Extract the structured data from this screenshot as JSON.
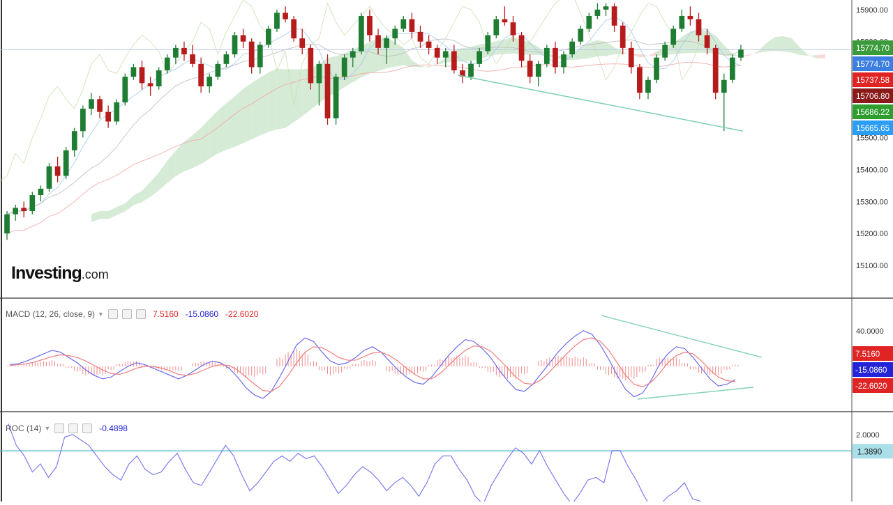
{
  "logo": {
    "main": "Investing",
    "suffix": ".com"
  },
  "panels": {
    "macd": {
      "title": "MACD (12, 26, close, 9)",
      "v1": "7.5160",
      "v2": "-15.0860",
      "v3": "-22.6020"
    },
    "roc": {
      "title": "ROC (14)",
      "v1": "-0.4898"
    }
  },
  "colors": {
    "up": "#1e7d32",
    "down": "#b71c1c",
    "macd_line": "#6a6af0",
    "signal_line": "#f07c7c",
    "hist": "#f08a8a",
    "cloud_up": "#cfe8cf",
    "cloud_down": "#f6d2d2",
    "trend": "#7fcfb8",
    "roc_line": "#7b7bf0",
    "roc_level": "#4fb7c9"
  },
  "chart_data": [
    {
      "type": "candlestick",
      "title": "",
      "ylim": [
        15000,
        15930
      ],
      "y_ticks": [
        "15900.00",
        "15800.00",
        "15500.00",
        "15400.00",
        "15300.00",
        "15200.00",
        "15100.00"
      ],
      "price_tags": [
        {
          "value": 15774.7,
          "label": "15774.70",
          "color": "#3a9b3a"
        },
        {
          "value": 15774.7,
          "label": "15774.70",
          "color": "#3d7fe0"
        },
        {
          "value": 15737.58,
          "label": "15737.58",
          "color": "#e02424"
        },
        {
          "value": 15706.8,
          "label": "15706.80",
          "color": "#8b1a1a"
        },
        {
          "value": 15686.22,
          "label": "15686.22",
          "color": "#2e9e2e"
        },
        {
          "value": 15665.65,
          "label": "15665.65",
          "color": "#2a9df4"
        }
      ],
      "candles": [
        [
          15200,
          15270,
          15180,
          15260
        ],
        [
          15260,
          15290,
          15240,
          15280
        ],
        [
          15280,
          15300,
          15250,
          15270
        ],
        [
          15270,
          15330,
          15260,
          15320
        ],
        [
          15320,
          15350,
          15300,
          15340
        ],
        [
          15340,
          15420,
          15330,
          15410
        ],
        [
          15410,
          15440,
          15360,
          15380
        ],
        [
          15380,
          15470,
          15370,
          15460
        ],
        [
          15460,
          15530,
          15440,
          15520
        ],
        [
          15520,
          15600,
          15500,
          15590
        ],
        [
          15590,
          15640,
          15570,
          15620
        ],
        [
          15620,
          15630,
          15560,
          15580
        ],
        [
          15580,
          15600,
          15530,
          15550
        ],
        [
          15550,
          15620,
          15540,
          15610
        ],
        [
          15610,
          15700,
          15600,
          15690
        ],
        [
          15690,
          15730,
          15680,
          15720
        ],
        [
          15720,
          15740,
          15650,
          15670
        ],
        [
          15670,
          15690,
          15630,
          15660
        ],
        [
          15660,
          15720,
          15650,
          15710
        ],
        [
          15710,
          15760,
          15700,
          15750
        ],
        [
          15750,
          15790,
          15730,
          15780
        ],
        [
          15780,
          15800,
          15740,
          15760
        ],
        [
          15760,
          15790,
          15720,
          15730
        ],
        [
          15730,
          15750,
          15640,
          15660
        ],
        [
          15660,
          15700,
          15640,
          15690
        ],
        [
          15690,
          15740,
          15680,
          15730
        ],
        [
          15730,
          15770,
          15720,
          15760
        ],
        [
          15760,
          15830,
          15750,
          15820
        ],
        [
          15820,
          15840,
          15780,
          15800
        ],
        [
          15800,
          15810,
          15700,
          15720
        ],
        [
          15720,
          15800,
          15700,
          15790
        ],
        [
          15790,
          15850,
          15780,
          15840
        ],
        [
          15840,
          15900,
          15830,
          15890
        ],
        [
          15890,
          15910,
          15860,
          15870
        ],
        [
          15870,
          15880,
          15800,
          15810
        ],
        [
          15810,
          15840,
          15760,
          15780
        ],
        [
          15780,
          15790,
          15650,
          15670
        ],
        [
          15670,
          15740,
          15600,
          15730
        ],
        [
          15730,
          15760,
          15540,
          15560
        ],
        [
          15560,
          15700,
          15540,
          15690
        ],
        [
          15690,
          15760,
          15680,
          15750
        ],
        [
          15750,
          15780,
          15720,
          15770
        ],
        [
          15770,
          15890,
          15760,
          15880
        ],
        [
          15880,
          15900,
          15800,
          15820
        ],
        [
          15820,
          15840,
          15760,
          15780
        ],
        [
          15780,
          15820,
          15730,
          15810
        ],
        [
          15810,
          15850,
          15790,
          15840
        ],
        [
          15840,
          15880,
          15830,
          15870
        ],
        [
          15870,
          15890,
          15810,
          15830
        ],
        [
          15830,
          15850,
          15780,
          15800
        ],
        [
          15800,
          15820,
          15760,
          15780
        ],
        [
          15780,
          15790,
          15730,
          15750
        ],
        [
          15750,
          15780,
          15720,
          15770
        ],
        [
          15770,
          15790,
          15700,
          15710
        ],
        [
          15710,
          15730,
          15670,
          15690
        ],
        [
          15690,
          15740,
          15680,
          15730
        ],
        [
          15730,
          15780,
          15720,
          15770
        ],
        [
          15770,
          15830,
          15760,
          15820
        ],
        [
          15820,
          15880,
          15810,
          15870
        ],
        [
          15870,
          15910,
          15850,
          15860
        ],
        [
          15860,
          15880,
          15800,
          15820
        ],
        [
          15820,
          15830,
          15720,
          15740
        ],
        [
          15740,
          15760,
          15670,
          15690
        ],
        [
          15690,
          15740,
          15660,
          15730
        ],
        [
          15730,
          15790,
          15720,
          15780
        ],
        [
          15780,
          15800,
          15700,
          15720
        ],
        [
          15720,
          15770,
          15700,
          15760
        ],
        [
          15760,
          15810,
          15750,
          15800
        ],
        [
          15800,
          15850,
          15790,
          15840
        ],
        [
          15840,
          15890,
          15830,
          15880
        ],
        [
          15880,
          15920,
          15870,
          15900
        ],
        [
          15900,
          15920,
          15880,
          15910
        ],
        [
          15910,
          15920,
          15830,
          15850
        ],
        [
          15850,
          15860,
          15760,
          15780
        ],
        [
          15780,
          15800,
          15700,
          15720
        ],
        [
          15720,
          15730,
          15620,
          15640
        ],
        [
          15640,
          15690,
          15620,
          15680
        ],
        [
          15680,
          15760,
          15670,
          15750
        ],
        [
          15750,
          15800,
          15740,
          15790
        ],
        [
          15790,
          15850,
          15780,
          15840
        ],
        [
          15840,
          15900,
          15830,
          15880
        ],
        [
          15880,
          15910,
          15850,
          15870
        ],
        [
          15870,
          15890,
          15800,
          15820
        ],
        [
          15820,
          15840,
          15760,
          15780
        ],
        [
          15780,
          15790,
          15620,
          15640
        ],
        [
          15640,
          15700,
          15520,
          15680
        ],
        [
          15680,
          15760,
          15670,
          15750
        ],
        [
          15750,
          15790,
          15740,
          15775
        ]
      ],
      "trendline": [
        [
          0.425,
          15695
        ],
        [
          0.875,
          15520
        ]
      ]
    },
    {
      "type": "bar",
      "title": "MACD (12, 26, close, 9)",
      "ylim": [
        -50,
        75
      ],
      "y_ticks": [
        "40.0000"
      ],
      "value_tags": [
        {
          "value": 7.516,
          "label": "7.5160",
          "color": "#e02424"
        },
        {
          "value": -15.086,
          "label": "-15.0860",
          "color": "#2323d8"
        },
        {
          "value": -22.602,
          "label": "-22.6020",
          "color": "#e02424"
        }
      ],
      "series": [
        {
          "name": "MACD",
          "values": [
            2,
            3,
            6,
            10,
            14,
            18,
            16,
            10,
            4,
            -4,
            -10,
            -14,
            -12,
            -6,
            0,
            4,
            2,
            -2,
            -6,
            -10,
            -14,
            -10,
            -4,
            2,
            6,
            4,
            -2,
            -12,
            -24,
            -32,
            -36,
            -28,
            -12,
            6,
            24,
            32,
            28,
            16,
            6,
            2,
            4,
            10,
            18,
            22,
            16,
            6,
            -4,
            -12,
            -18,
            -20,
            -12,
            0,
            12,
            22,
            30,
            28,
            20,
            10,
            -4,
            -16,
            -26,
            -28,
            -20,
            -8,
            4,
            16,
            26,
            34,
            40,
            36,
            24,
            8,
            -10,
            -26,
            -34,
            -30,
            -16,
            2,
            14,
            22,
            20,
            10,
            -2,
            -14,
            -22,
            -20,
            -15
          ]
        },
        {
          "name": "Signal",
          "values": [
            1,
            2,
            3,
            5,
            8,
            11,
            13,
            12,
            10,
            6,
            1,
            -4,
            -8,
            -9,
            -6,
            -2,
            0,
            0,
            -2,
            -5,
            -9,
            -10,
            -8,
            -4,
            0,
            2,
            1,
            -4,
            -12,
            -20,
            -27,
            -28,
            -22,
            -10,
            4,
            16,
            22,
            21,
            16,
            10,
            7,
            7,
            11,
            15,
            16,
            12,
            6,
            -2,
            -9,
            -14,
            -14,
            -8,
            1,
            10,
            18,
            23,
            22,
            17,
            8,
            -2,
            -12,
            -19,
            -20,
            -15,
            -6,
            4,
            14,
            23,
            30,
            32,
            28,
            18,
            4,
            -10,
            -20,
            -23,
            -18,
            -8,
            4,
            12,
            16,
            14,
            6,
            -4,
            -12,
            -16,
            -17
          ]
        }
      ],
      "histogram": [
        1,
        1,
        3,
        5,
        6,
        7,
        3,
        -2,
        -6,
        -10,
        -11,
        -10,
        -4,
        3,
        6,
        6,
        2,
        -2,
        -4,
        -5,
        -5,
        0,
        4,
        6,
        6,
        2,
        -3,
        -8,
        -12,
        -12,
        -9,
        0,
        10,
        16,
        20,
        16,
        6,
        -5,
        -10,
        -8,
        -3,
        3,
        7,
        7,
        0,
        -6,
        -10,
        -10,
        -9,
        -6,
        2,
        8,
        11,
        12,
        12,
        5,
        -2,
        -7,
        -12,
        -14,
        -14,
        -9,
        0,
        7,
        10,
        12,
        12,
        11,
        10,
        4,
        -4,
        -10,
        -14,
        -16,
        -14,
        -7,
        2,
        10,
        10,
        10,
        4,
        -4,
        -8,
        -10,
        -10,
        -4,
        2
      ]
    },
    {
      "type": "line",
      "title": "ROC (14)",
      "ylim": [
        -0.5,
        2.8
      ],
      "y_ticks": [
        "2.0000"
      ],
      "level": {
        "value": 1.389,
        "label": "1.3890"
      },
      "series": [
        {
          "name": "ROC",
          "values": [
            2.4,
            1.6,
            1.2,
            0.6,
            0.9,
            0.4,
            0.8,
            1.9,
            2.0,
            1.8,
            1.6,
            1.2,
            0.8,
            0.5,
            0.3,
            0.9,
            1.2,
            0.7,
            0.5,
            0.6,
            1.0,
            1.3,
            0.7,
            0.2,
            0.1,
            0.6,
            1.1,
            1.6,
            1.2,
            0.5,
            -0.1,
            0.2,
            0.6,
            1.0,
            1.2,
            1.0,
            1.3,
            1.1,
            1.2,
            0.8,
            0.3,
            -0.2,
            0.1,
            0.5,
            0.8,
            0.6,
            0.3,
            -0.1,
            0.2,
            0.4,
            0.1,
            -0.3,
            0.2,
            0.9,
            1.2,
            1.2,
            0.7,
            0.3,
            -0.3,
            -0.6,
            0.1,
            0.6,
            1.1,
            1.5,
            1.3,
            0.9,
            1.4,
            0.8,
            0.3,
            -0.2,
            -0.6,
            -0.2,
            0.3,
            0.4,
            0.2,
            1.4,
            1.4,
            0.8,
            0.3,
            -0.3,
            -0.8,
            -0.6,
            -0.3,
            -0.1,
            0.2,
            -0.4,
            -0.49
          ]
        }
      ]
    }
  ]
}
